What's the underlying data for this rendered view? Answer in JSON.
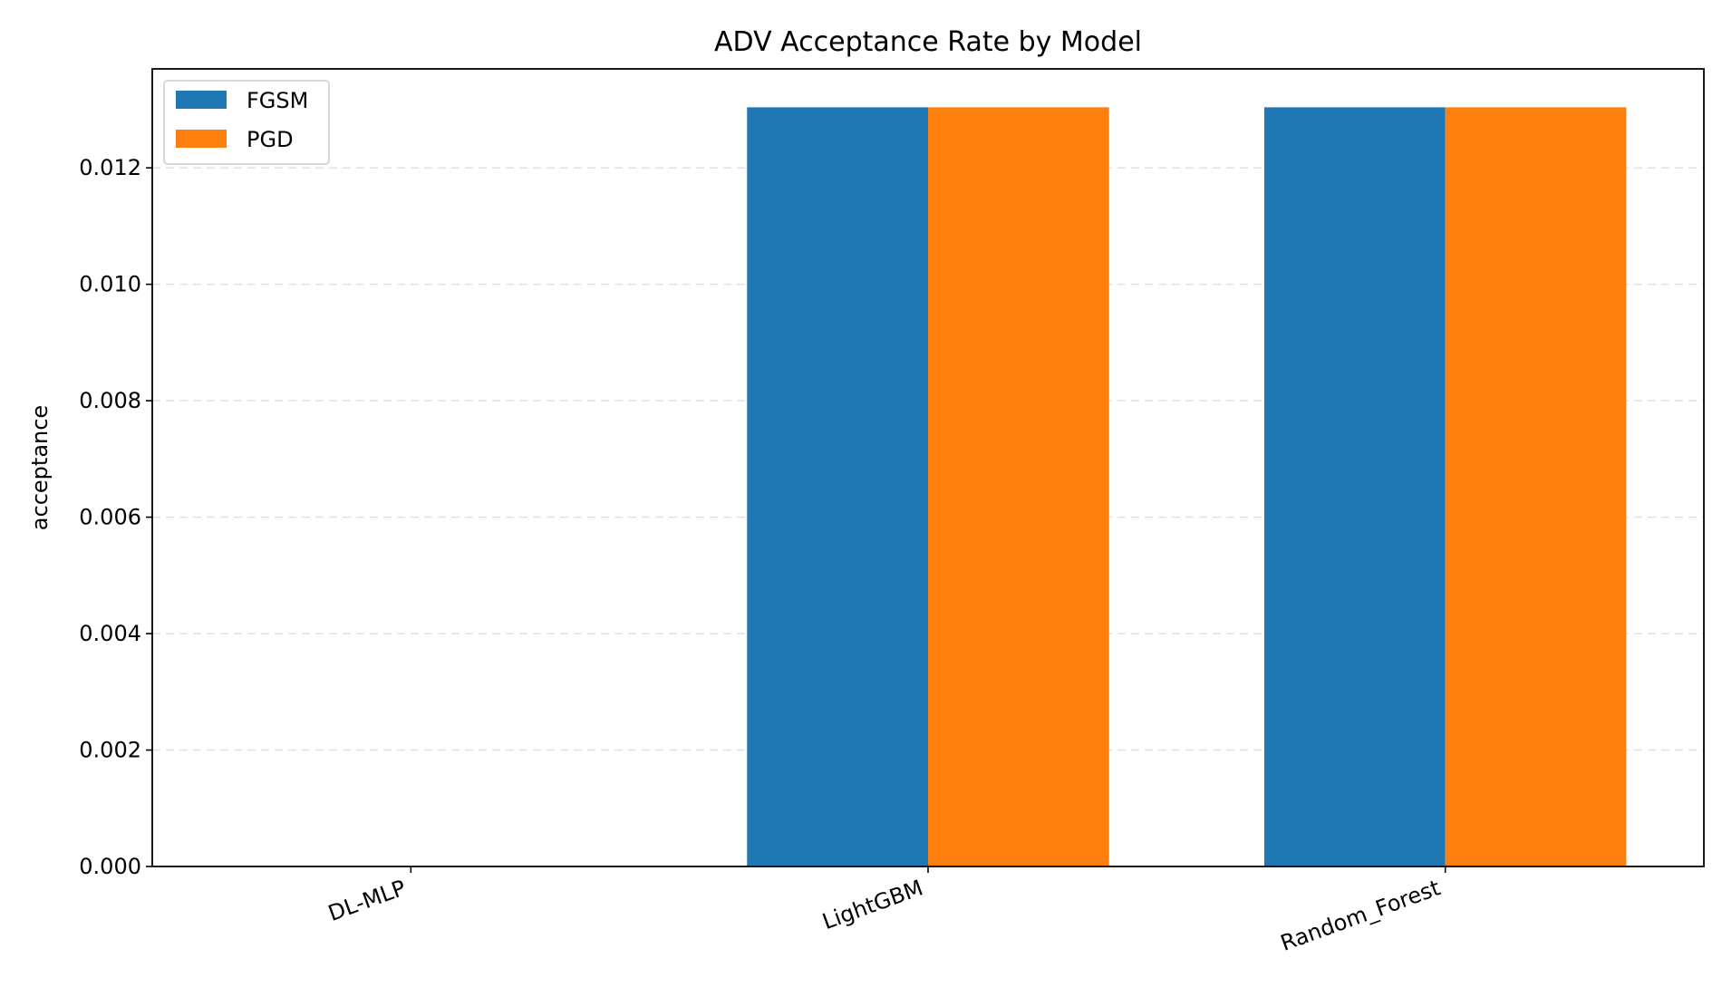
{
  "chart_data": {
    "type": "bar",
    "title": "ADV Acceptance Rate by Model",
    "xlabel": "",
    "ylabel": "acceptance",
    "categories": [
      "DL-MLP",
      "LightGBM",
      "Random_Forest"
    ],
    "series": [
      {
        "name": "FGSM",
        "values": [
          0,
          0.01304,
          0.01304
        ],
        "color": "#1f77b4"
      },
      {
        "name": "PGD",
        "values": [
          0,
          0.01304,
          0.01304
        ],
        "color": "#ff7f0e"
      }
    ],
    "ylim": [
      0,
      0.0137
    ],
    "yticks": [
      0,
      0.002,
      0.004,
      0.006,
      0.008,
      0.01,
      0.012
    ],
    "ytick_labels": [
      "0.000",
      "0.002",
      "0.004",
      "0.006",
      "0.008",
      "0.010",
      "0.012"
    ],
    "grid": "y",
    "legend": "top-left"
  }
}
